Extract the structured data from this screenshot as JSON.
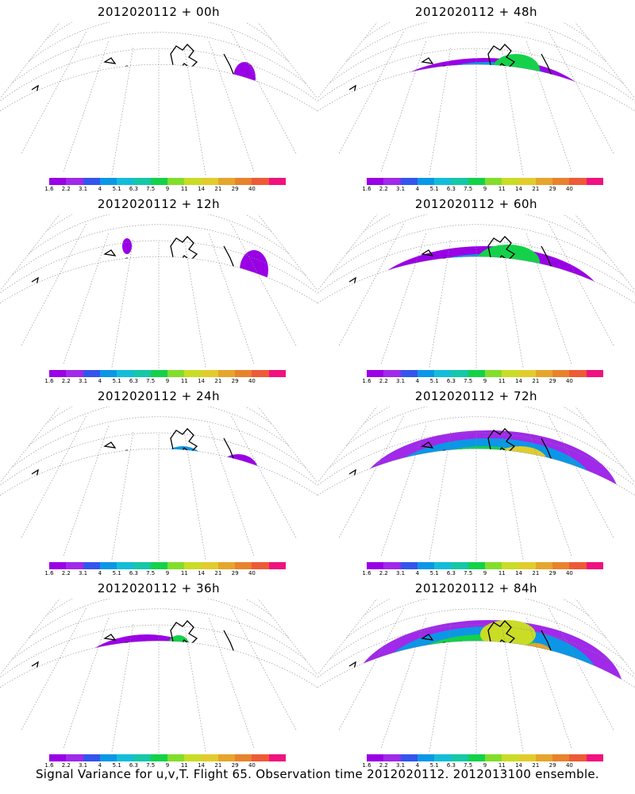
{
  "panels": [
    {
      "title": "2012020112 + 00h",
      "level": 0
    },
    {
      "title": "2012020112 + 48h",
      "level": 4
    },
    {
      "title": "2012020112 + 12h",
      "level": 1
    },
    {
      "title": "2012020112 + 60h",
      "level": 5
    },
    {
      "title": "2012020112 + 24h",
      "level": 2
    },
    {
      "title": "2012020112 + 72h",
      "level": 6
    },
    {
      "title": "2012020112 + 36h",
      "level": 3
    },
    {
      "title": "2012020112 + 84h",
      "level": 7
    }
  ],
  "colorbar": {
    "colors": [
      "#9a00e6",
      "#a029ea",
      "#3355ee",
      "#0b97e6",
      "#13bdda",
      "#14c8a8",
      "#13d24a",
      "#82de2a",
      "#cadc26",
      "#e2cc2c",
      "#e6a52c",
      "#e8822d",
      "#ee5a36",
      "#f0127e"
    ],
    "ticks": [
      "1.6",
      "2.2",
      "3.1",
      "4",
      "5.1",
      "6.3",
      "7.5",
      "9",
      "11",
      "14",
      "21",
      "29",
      "40"
    ]
  },
  "caption": "Signal Variance for u,v,T. Flight 65. Observation time 2012020112. 2012013100 ensemble."
}
